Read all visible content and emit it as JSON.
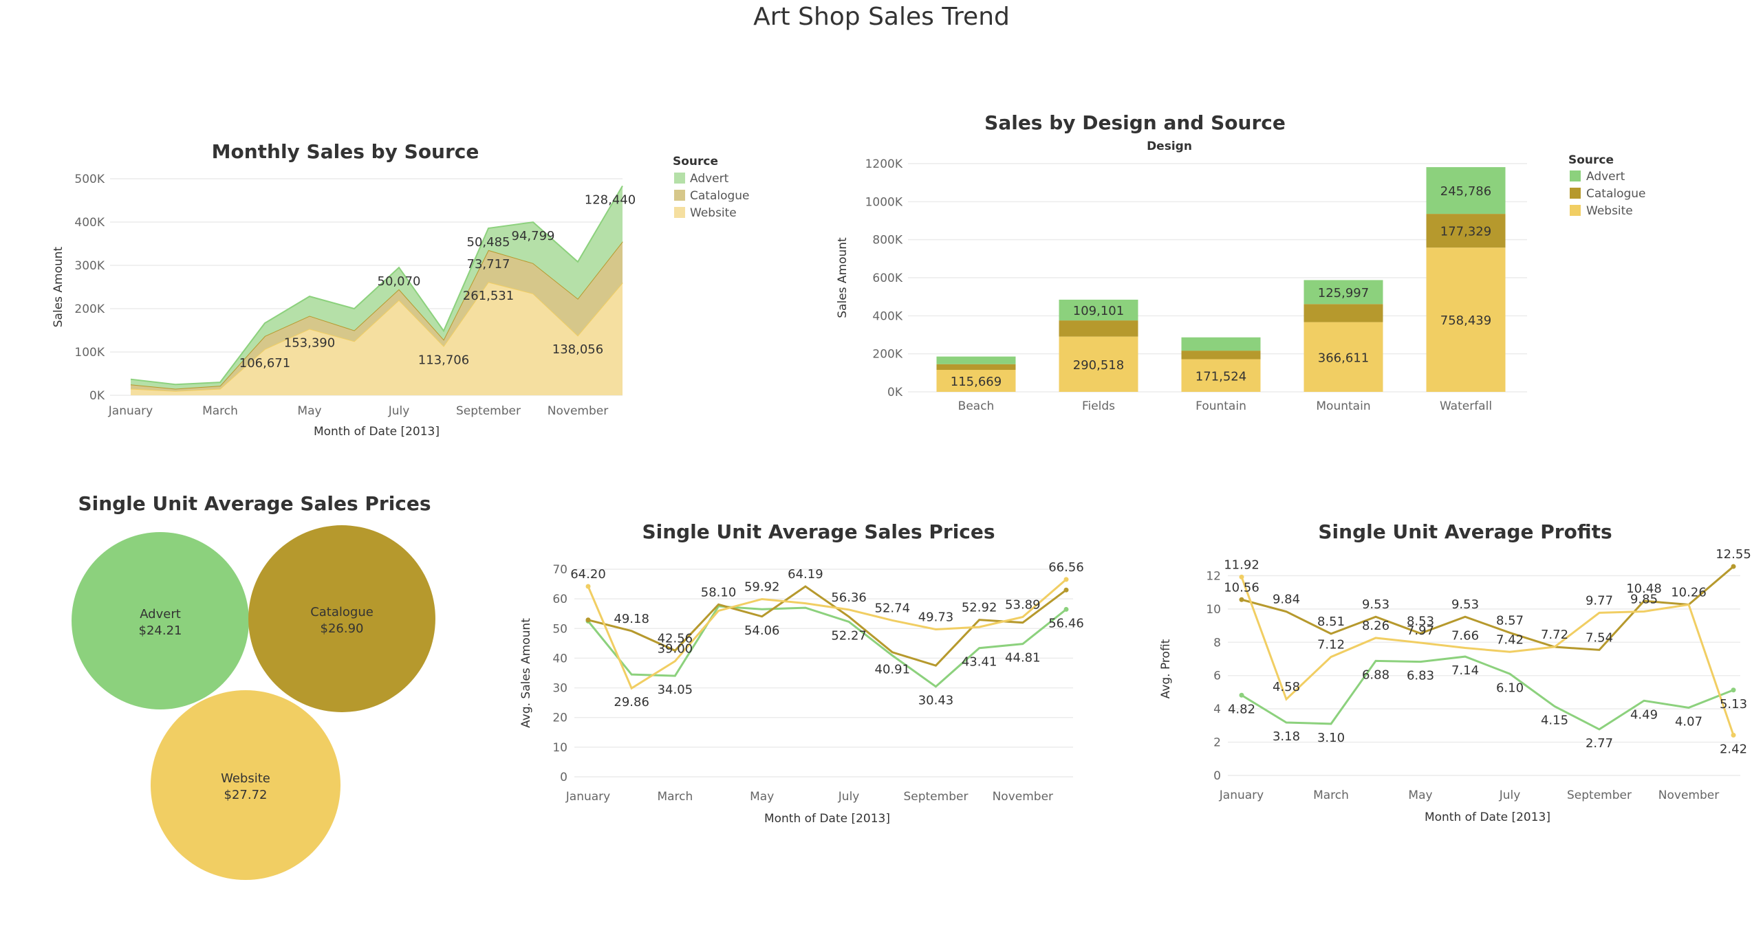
{
  "dashboard": {
    "title": "Art Shop Sales Trend"
  },
  "colors": {
    "Advert": "#8cd17d",
    "Catalogue": "#b6992d",
    "Website": "#f1ce63",
    "Advert_area": "#b5e0a8",
    "Catalogue_area": "#d6c78a",
    "Website_area": "#f5dfa0"
  },
  "chart_data": [
    {
      "id": "monthly_sales",
      "type": "area",
      "title": "Monthly Sales by Source",
      "xlabel": "Month of Date [2013]",
      "ylabel": "Sales Amount",
      "x": [
        "January",
        "February",
        "March",
        "April",
        "May",
        "June",
        "July",
        "August",
        "September",
        "October",
        "November",
        "December"
      ],
      "x_tick_labels": [
        "January",
        "March",
        "May",
        "July",
        "September",
        "November"
      ],
      "y_ticks": [
        "0K",
        "100K",
        "200K",
        "300K",
        "400K",
        "500K"
      ],
      "ylim": [
        0,
        500000
      ],
      "stacked": true,
      "series": [
        {
          "name": "Website",
          "values": [
            15000,
            10000,
            15000,
            106671,
            153390,
            125000,
            220000,
            113706,
            261531,
            235000,
            138056,
            260000
          ]
        },
        {
          "name": "Catalogue",
          "values": [
            10000,
            5000,
            7000,
            30000,
            30000,
            25000,
            25000,
            15000,
            73717,
            70000,
            85000,
            95000
          ]
        },
        {
          "name": "Advert",
          "values": [
            12000,
            10000,
            8000,
            30000,
            45000,
            50000,
            50070,
            20000,
            50485,
            94799,
            85000,
            128440
          ]
        }
      ],
      "data_labels": [
        {
          "text": "106,671",
          "series": "Website",
          "month": "April"
        },
        {
          "text": "153,390",
          "series": "Website",
          "month": "May"
        },
        {
          "text": "113,706",
          "series": "Website",
          "month": "August"
        },
        {
          "text": "261,531",
          "series": "Website",
          "month": "September"
        },
        {
          "text": "138,056",
          "series": "Website",
          "month": "November"
        },
        {
          "text": "73,717",
          "series": "Catalogue",
          "month": "September"
        },
        {
          "text": "50,070",
          "series": "Advert",
          "month": "July"
        },
        {
          "text": "50,485",
          "series": "Advert",
          "month": "September"
        },
        {
          "text": "94,799",
          "series": "Advert",
          "month": "October"
        },
        {
          "text": "128,440",
          "series": "Advert",
          "month": "December"
        }
      ],
      "legend": {
        "title": "Source",
        "entries": [
          "Advert",
          "Catalogue",
          "Website"
        ],
        "position": "right"
      },
      "grid": true
    },
    {
      "id": "design_source",
      "type": "bar",
      "title": "Sales by Design and Source",
      "column_header": "Design",
      "ylabel": "Sales Amount",
      "categories": [
        "Beach",
        "Fields",
        "Fountain",
        "Mountain",
        "Waterfall"
      ],
      "y_ticks": [
        "0K",
        "200K",
        "400K",
        "600K",
        "800K",
        "1000K",
        "1200K"
      ],
      "ylim": [
        0,
        1200000
      ],
      "stacked": true,
      "series": [
        {
          "name": "Website",
          "values": [
            115669,
            290518,
            171524,
            366611,
            758439
          ],
          "labels": [
            "115,669",
            "290,518",
            "171,524",
            "366,611",
            "758,439"
          ]
        },
        {
          "name": "Catalogue",
          "values": [
            30000,
            85000,
            45000,
            95000,
            177329
          ],
          "labels": [
            "",
            "",
            "",
            "",
            "177,329"
          ]
        },
        {
          "name": "Advert",
          "values": [
            40000,
            109101,
            70000,
            125997,
            245786
          ],
          "labels": [
            "",
            "109,101",
            "",
            "125,997",
            "245,786"
          ]
        }
      ],
      "legend": {
        "title": "Source",
        "entries": [
          "Advert",
          "Catalogue",
          "Website"
        ],
        "position": "right"
      },
      "grid": true
    },
    {
      "id": "bubbles",
      "type": "bubble",
      "title": "Single Unit Average Sales Prices",
      "items": [
        {
          "name": "Advert",
          "label": "$24.21",
          "value": 24.21
        },
        {
          "name": "Catalogue",
          "label": "$26.90",
          "value": 26.9
        },
        {
          "name": "Website",
          "label": "$27.72",
          "value": 27.72
        }
      ]
    },
    {
      "id": "avg_sales_prices",
      "type": "line",
      "title": "Single Unit Average Sales Prices",
      "xlabel": "Month of Date [2013]",
      "ylabel": "Avg. Sales Amount",
      "x": [
        "January",
        "February",
        "March",
        "April",
        "May",
        "June",
        "July",
        "August",
        "September",
        "October",
        "November",
        "December"
      ],
      "x_tick_labels": [
        "January",
        "March",
        "May",
        "July",
        "September",
        "November"
      ],
      "y_ticks": [
        "0",
        "10",
        "20",
        "30",
        "40",
        "50",
        "60",
        "70"
      ],
      "ylim": [
        0,
        70
      ],
      "series": [
        {
          "name": "Advert",
          "values": [
            52.5,
            34.5,
            34.05,
            57.5,
            56.5,
            57,
            52.27,
            40.91,
            30.43,
            43.41,
            44.81,
            56.46
          ]
        },
        {
          "name": "Catalogue",
          "values": [
            52.9,
            49.18,
            42.56,
            58.1,
            54.06,
            64.19,
            54,
            42,
            37.5,
            52.92,
            52,
            63
          ]
        },
        {
          "name": "Website",
          "values": [
            64.2,
            29.86,
            39,
            56,
            59.92,
            58.5,
            56.36,
            52.74,
            49.73,
            50.5,
            53.89,
            66.56
          ]
        }
      ],
      "data_labels": [
        {
          "text": "64.20",
          "series": "Website",
          "month": "January"
        },
        {
          "text": "29.86",
          "series": "Website",
          "month": "February"
        },
        {
          "text": "49.18",
          "series": "Catalogue",
          "month": "February"
        },
        {
          "text": "42.56",
          "series": "Catalogue",
          "month": "March"
        },
        {
          "text": "39.00",
          "series": "Website",
          "month": "March"
        },
        {
          "text": "34.05",
          "series": "Advert",
          "month": "March"
        },
        {
          "text": "58.10",
          "series": "Catalogue",
          "month": "April"
        },
        {
          "text": "59.92",
          "series": "Website",
          "month": "May"
        },
        {
          "text": "54.06",
          "series": "Catalogue",
          "month": "May"
        },
        {
          "text": "64.19",
          "series": "Catalogue",
          "month": "June"
        },
        {
          "text": "56.36",
          "series": "Website",
          "month": "July"
        },
        {
          "text": "52.27",
          "series": "Advert",
          "month": "July"
        },
        {
          "text": "52.74",
          "series": "Website",
          "month": "August"
        },
        {
          "text": "40.91",
          "series": "Advert",
          "month": "August"
        },
        {
          "text": "49.73",
          "series": "Website",
          "month": "September"
        },
        {
          "text": "30.43",
          "series": "Advert",
          "month": "September"
        },
        {
          "text": "52.92",
          "series": "Catalogue",
          "month": "October"
        },
        {
          "text": "43.41",
          "series": "Advert",
          "month": "October"
        },
        {
          "text": "53.89",
          "series": "Website",
          "month": "November"
        },
        {
          "text": "44.81",
          "series": "Advert",
          "month": "November"
        },
        {
          "text": "66.56",
          "series": "Website",
          "month": "December"
        },
        {
          "text": "56.46",
          "series": "Advert",
          "month": "December"
        }
      ],
      "grid": true
    },
    {
      "id": "avg_profits",
      "type": "line",
      "title": "Single Unit Average Profits",
      "xlabel": "Month of Date [2013]",
      "ylabel": "Avg. Profit",
      "x": [
        "January",
        "February",
        "March",
        "April",
        "May",
        "June",
        "July",
        "August",
        "September",
        "October",
        "November",
        "December"
      ],
      "x_tick_labels": [
        "January",
        "March",
        "May",
        "July",
        "September",
        "November"
      ],
      "y_ticks": [
        "0",
        "2",
        "4",
        "6",
        "8",
        "10",
        "12"
      ],
      "ylim": [
        0,
        12.8
      ],
      "series": [
        {
          "name": "Advert",
          "values": [
            4.82,
            3.18,
            3.1,
            6.88,
            6.83,
            7.14,
            6.1,
            4.15,
            2.77,
            4.49,
            4.07,
            5.13
          ]
        },
        {
          "name": "Catalogue",
          "values": [
            10.56,
            9.84,
            8.51,
            9.53,
            8.53,
            9.53,
            8.57,
            7.72,
            7.54,
            10.48,
            10.26,
            12.55
          ]
        },
        {
          "name": "Website",
          "values": [
            11.92,
            4.58,
            7.12,
            8.26,
            7.97,
            7.66,
            7.42,
            7.72,
            9.77,
            9.85,
            10.26,
            2.42
          ]
        }
      ],
      "data_labels": [
        {
          "text": "11.92",
          "series": "Website",
          "month": "January"
        },
        {
          "text": "10.56",
          "series": "Catalogue",
          "month": "January"
        },
        {
          "text": "4.82",
          "series": "Advert",
          "month": "January"
        },
        {
          "text": "9.84",
          "series": "Catalogue",
          "month": "February"
        },
        {
          "text": "4.58",
          "series": "Website",
          "month": "February"
        },
        {
          "text": "3.18",
          "series": "Advert",
          "month": "February"
        },
        {
          "text": "8.51",
          "series": "Catalogue",
          "month": "March"
        },
        {
          "text": "7.12",
          "series": "Website",
          "month": "March"
        },
        {
          "text": "3.10",
          "series": "Advert",
          "month": "March"
        },
        {
          "text": "9.53",
          "series": "Catalogue",
          "month": "April"
        },
        {
          "text": "8.26",
          "series": "Website",
          "month": "April"
        },
        {
          "text": "6.88",
          "series": "Advert",
          "month": "April"
        },
        {
          "text": "8.53",
          "series": "Catalogue",
          "month": "May"
        },
        {
          "text": "7.97",
          "series": "Website",
          "month": "May"
        },
        {
          "text": "6.83",
          "series": "Advert",
          "month": "May"
        },
        {
          "text": "9.53",
          "series": "Catalogue",
          "month": "June"
        },
        {
          "text": "7.66",
          "series": "Website",
          "month": "June"
        },
        {
          "text": "7.14",
          "series": "Advert",
          "month": "June"
        },
        {
          "text": "8.57",
          "series": "Catalogue",
          "month": "July"
        },
        {
          "text": "7.42",
          "series": "Website",
          "month": "July"
        },
        {
          "text": "6.10",
          "series": "Advert",
          "month": "July"
        },
        {
          "text": "7.72",
          "series": "Catalogue",
          "month": "August"
        },
        {
          "text": "4.15",
          "series": "Advert",
          "month": "August"
        },
        {
          "text": "9.77",
          "series": "Website",
          "month": "September"
        },
        {
          "text": "7.54",
          "series": "Catalogue",
          "month": "September"
        },
        {
          "text": "2.77",
          "series": "Advert",
          "month": "September"
        },
        {
          "text": "10.48",
          "series": "Catalogue",
          "month": "October"
        },
        {
          "text": "9.85",
          "series": "Website",
          "month": "October"
        },
        {
          "text": "4.49",
          "series": "Advert",
          "month": "October"
        },
        {
          "text": "10.26",
          "series": "Catalogue",
          "month": "November"
        },
        {
          "text": "4.07",
          "series": "Advert",
          "month": "November"
        },
        {
          "text": "12.55",
          "series": "Catalogue",
          "month": "December"
        },
        {
          "text": "5.13",
          "series": "Advert",
          "month": "December"
        },
        {
          "text": "2.42",
          "series": "Website",
          "month": "December"
        }
      ],
      "grid": true
    }
  ]
}
